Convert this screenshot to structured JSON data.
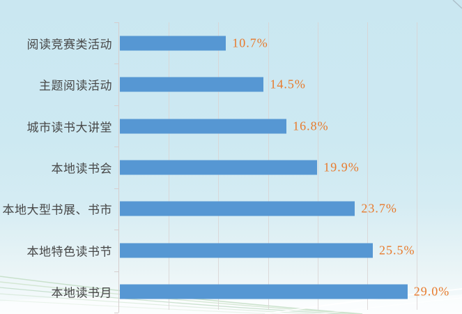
{
  "chart_data": {
    "type": "bar",
    "orientation": "horizontal",
    "title": "",
    "xlabel": "",
    "ylabel": "",
    "categories": [
      "阅读竞赛类活动",
      "主题阅读活动",
      "城市读书大讲堂",
      "本地读书会",
      "本地大型书展、书市",
      "本地特色读书节",
      "本地读书月"
    ],
    "values": [
      10.7,
      14.5,
      16.8,
      19.9,
      23.7,
      25.5,
      29.0
    ],
    "value_labels": [
      "10.7%",
      "14.5%",
      "16.8%",
      "19.9%",
      "23.7%",
      "25.5%",
      "29.0%"
    ],
    "xlim": [
      0,
      30
    ],
    "gridline_interval": 5,
    "grid": true,
    "legend": false,
    "bar_color": "#5697d3",
    "value_label_color": "#e87a2c",
    "category_label_color": "#474747",
    "gridline_color": "#d9d3d3",
    "background_color": "#cde9f2"
  }
}
